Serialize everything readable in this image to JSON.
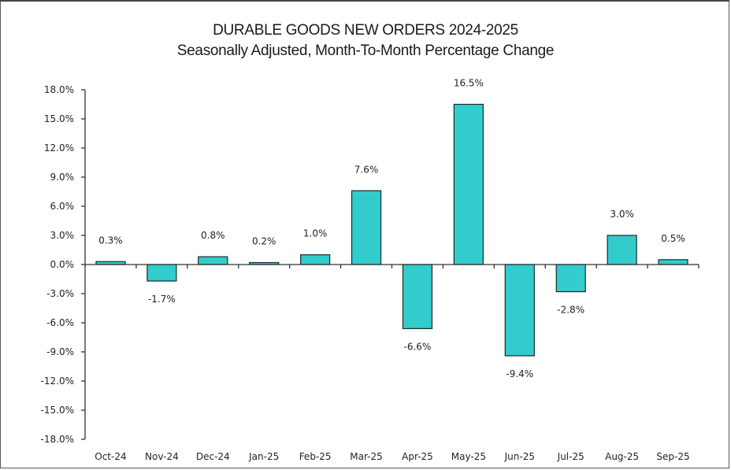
{
  "chart_data": {
    "type": "bar",
    "title": "DURABLE GOODS NEW ORDERS 2024-2025",
    "subtitle": "Seasonally Adjusted,  Month-To-Month Percentage Change",
    "xlabel": "",
    "ylabel": "",
    "categories": [
      "Oct-24",
      "Nov-24",
      "Dec-24",
      "Jan-25",
      "Feb-25",
      "Mar-25",
      "Apr-25",
      "May-25",
      "Jun-25",
      "Jul-25",
      "Aug-25",
      "Sep-25"
    ],
    "values": [
      0.3,
      -1.7,
      0.8,
      0.2,
      1.0,
      7.6,
      -6.6,
      16.5,
      -9.4,
      -2.8,
      3.0,
      0.5
    ],
    "data_labels": [
      "0.3%",
      "-1.7%",
      "0.8%",
      "0.2%",
      "1.0%",
      "7.6%",
      "-6.6%",
      "16.5%",
      "-9.4%",
      "-2.8%",
      "3.0%",
      "0.5%"
    ],
    "ylim": [
      -18,
      18
    ],
    "yticks": [
      18,
      15,
      12,
      9,
      6,
      3,
      0,
      -3,
      -6,
      -9,
      -12,
      -15,
      -18
    ],
    "ytick_labels": [
      "18.0%",
      "15.0%",
      "12.0%",
      "9.0%",
      "6.0%",
      "3.0%",
      "0.0%",
      "-3.0%",
      "-6.0%",
      "-9.0%",
      "-12.0%",
      "-15.0%",
      "-18.0%"
    ],
    "grid": false,
    "legend": "none",
    "colors": {
      "bar_fill": "#33CCCC",
      "bar_stroke": "#1a2a2a",
      "axis": "#333333"
    }
  }
}
